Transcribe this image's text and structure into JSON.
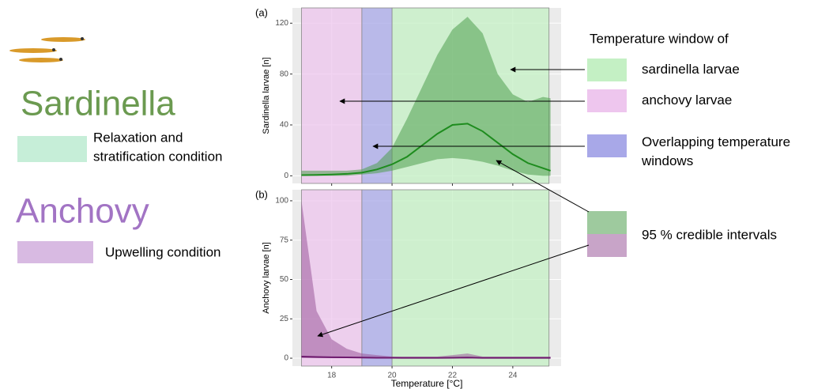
{
  "chart_data": [
    {
      "type": "line",
      "panel_label": "(a)",
      "ylabel": "Sardinella larvae [n]",
      "x": [
        17,
        17.5,
        18,
        18.5,
        19,
        19.5,
        20,
        20.5,
        21,
        21.5,
        22,
        22.5,
        23,
        23.5,
        24,
        24.5,
        25,
        25.25
      ],
      "line": {
        "color": "#1e8c1e",
        "values": [
          0.5,
          0.7,
          1,
          1.5,
          2.5,
          5,
          9,
          15,
          24,
          33,
          40,
          41,
          35,
          26,
          17,
          10,
          6,
          4
        ]
      },
      "band": {
        "color": "#4f9f4f",
        "upper": [
          4,
          4,
          4,
          4,
          5,
          10,
          22,
          45,
          70,
          95,
          115,
          125,
          112,
          80,
          64,
          58,
          62,
          61
        ],
        "lower": [
          0,
          0,
          0,
          0,
          1,
          2,
          4,
          7,
          10,
          13,
          14,
          13,
          11,
          8,
          4,
          1,
          0,
          0
        ]
      },
      "xlim": [
        16.7,
        25.6
      ],
      "xticks": [
        18,
        20,
        22,
        24
      ],
      "ylim": [
        -6,
        132
      ],
      "yticks": [
        0,
        40,
        80,
        120
      ],
      "grid": true
    },
    {
      "type": "line",
      "panel_label": "(b)",
      "ylabel": "Anchovy larvae [n]",
      "xlabel": "Temperature [°C]",
      "x": [
        17,
        17.5,
        18,
        18.5,
        19,
        19.5,
        20,
        20.5,
        21,
        21.5,
        22,
        22.5,
        23,
        23.5,
        24,
        24.5,
        25,
        25.25
      ],
      "line": {
        "color": "#6e1a6e",
        "values": [
          1,
          0.8,
          0.6,
          0.5,
          0.4,
          0.3,
          0.3,
          0.2,
          0.2,
          0.2,
          0.3,
          0.4,
          0.2,
          0.2,
          0.2,
          0.2,
          0.2,
          0.2
        ]
      },
      "band": {
        "color": "#9a5a9a",
        "upper": [
          100,
          30,
          12,
          6,
          3,
          2,
          1,
          1,
          1,
          1,
          2,
          3,
          1,
          1,
          1,
          1,
          1,
          1
        ],
        "lower": [
          0,
          0,
          0,
          0,
          0,
          0,
          0,
          0,
          0,
          0,
          0,
          0,
          0,
          0,
          0,
          0,
          0,
          0
        ]
      },
      "xlim": [
        16.7,
        25.6
      ],
      "xticks": [
        18,
        20,
        22,
        24
      ],
      "ylim": [
        -5,
        107
      ],
      "yticks": [
        0,
        25,
        50,
        75,
        100
      ],
      "grid": true
    }
  ],
  "windows": [
    {
      "from": 20,
      "to": 25.2,
      "color": "#c4f0c4"
    },
    {
      "from": 17,
      "to": 19,
      "color": "#eec6ee"
    },
    {
      "from": 19,
      "to": 20,
      "color": "#a8a8e8"
    }
  ],
  "legend": {
    "title": "Temperature window of",
    "items": [
      {
        "lines": [
          "sardinella larvae"
        ]
      },
      {
        "lines": [
          "anchovy larvae"
        ]
      },
      {
        "lines": [
          "Overlapping temperature",
          "windows"
        ]
      }
    ],
    "ci_label": "95 % credible intervals"
  },
  "sidebar": {
    "sardinella": {
      "title": "Sardinella",
      "color": "#6b9a50",
      "box_color": "#c6eed8",
      "lines": [
        "Relaxation and",
        "stratification condition"
      ]
    },
    "anchovy": {
      "title": "Anchovy",
      "color": "#a274c4",
      "box_color": "#d8bae2",
      "lines": [
        "Upwelling condition"
      ]
    }
  }
}
